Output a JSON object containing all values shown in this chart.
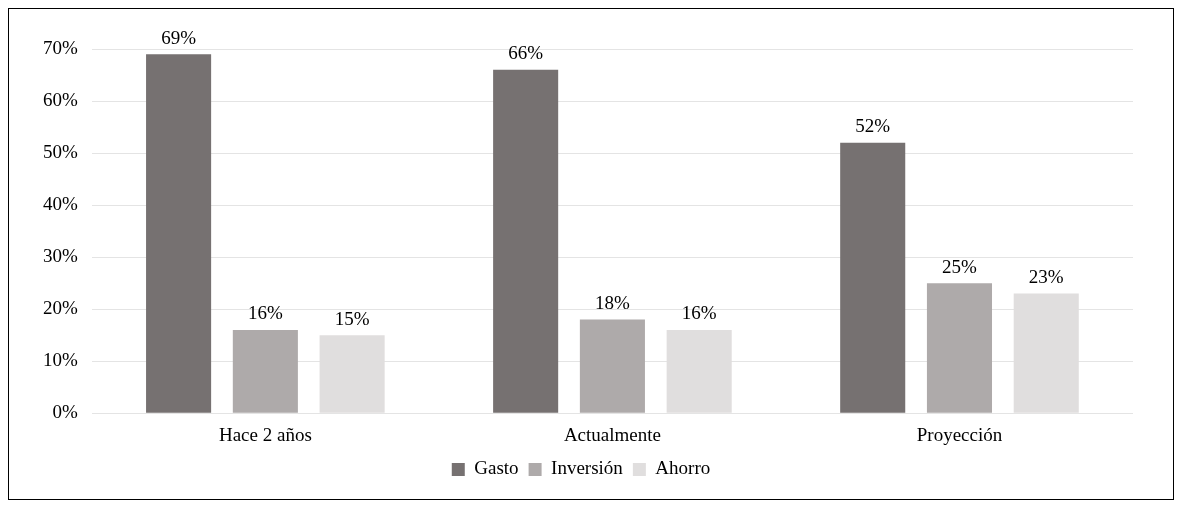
{
  "chart_data": {
    "type": "bar",
    "categories": [
      "Hace 2 años",
      "Actualmente",
      "Proyección"
    ],
    "series": [
      {
        "name": "Gasto",
        "color": "#767171",
        "values": [
          69,
          66,
          52
        ],
        "value_labels": [
          "69%",
          "66%",
          "52%"
        ]
      },
      {
        "name": "Inversión",
        "color": "#aeaaaa",
        "values": [
          16,
          18,
          25
        ],
        "value_labels": [
          "16%",
          "18%",
          "25%"
        ]
      },
      {
        "name": "Ahorro",
        "color": "#e0dede",
        "values": [
          15,
          16,
          23
        ],
        "value_labels": [
          "15%",
          "16%",
          "23%"
        ]
      }
    ],
    "ylim": [
      0,
      70
    ],
    "yticks": [
      {
        "value": 0,
        "label": "0%"
      },
      {
        "value": 10,
        "label": "10%"
      },
      {
        "value": 20,
        "label": "20%"
      },
      {
        "value": 30,
        "label": "30%"
      },
      {
        "value": 40,
        "label": "40%"
      },
      {
        "value": 50,
        "label": "50%"
      },
      {
        "value": 60,
        "label": "60%"
      },
      {
        "value": 70,
        "label": "70%"
      }
    ],
    "grid": "y",
    "legend": "bottom"
  }
}
